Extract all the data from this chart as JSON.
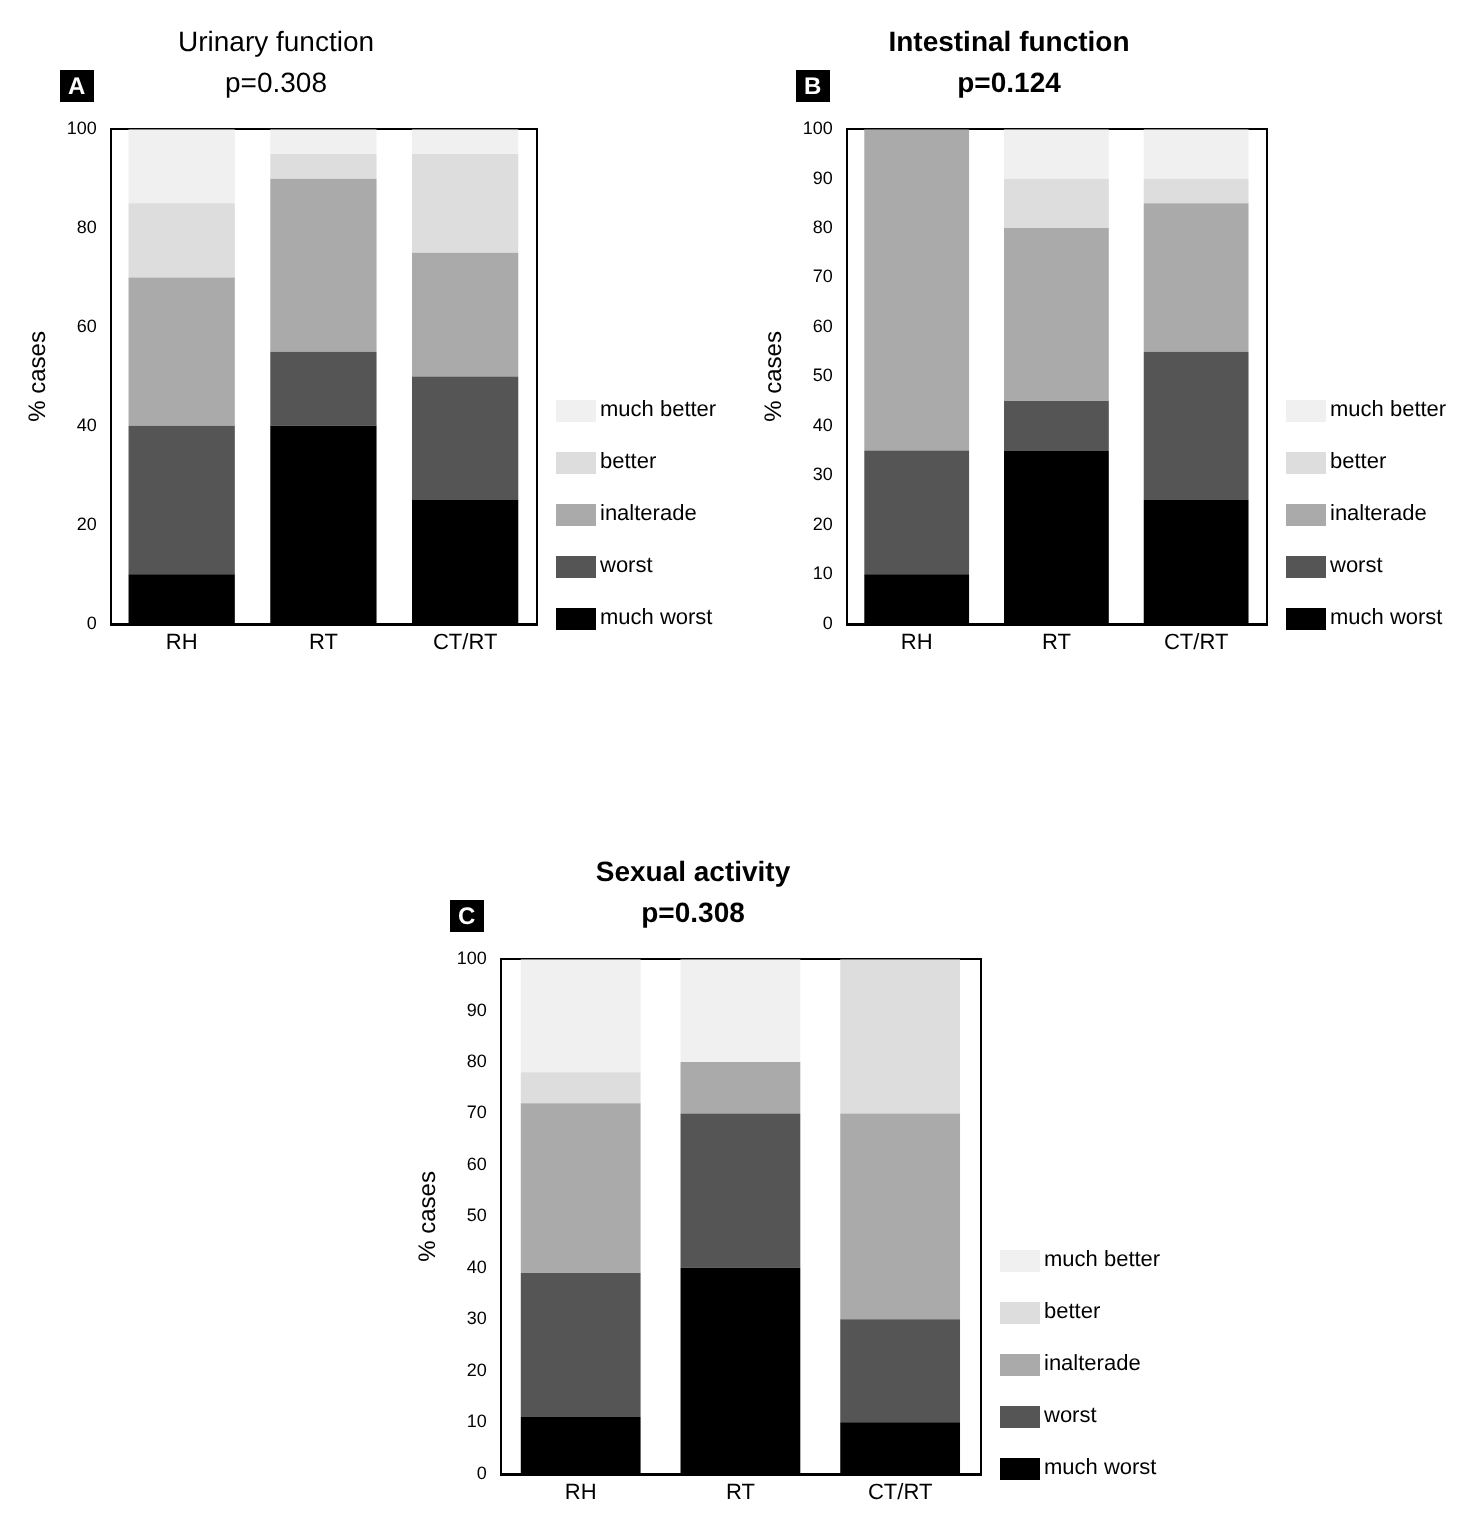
{
  "chart_data": [
    {
      "type": "bar",
      "title": "Urinary function",
      "subtitle": "p=0.308",
      "annotations": [
        "A"
      ],
      "ylabel": "% cases",
      "categories": [
        "RH",
        "RT",
        "CT/RT"
      ],
      "stacked": true,
      "legend": "right",
      "grid": false,
      "ylim": [
        0,
        100
      ],
      "yticks": [
        0,
        20,
        40,
        60,
        80,
        100
      ],
      "series": [
        {
          "name": "much worst",
          "color": "#000000",
          "values": [
            10,
            40,
            25
          ]
        },
        {
          "name": "worst",
          "color": "#555555",
          "values": [
            30,
            15,
            25
          ]
        },
        {
          "name": "inalterade",
          "color": "#aaaaaa",
          "values": [
            30,
            35,
            25
          ]
        },
        {
          "name": "better",
          "color": "#dddddd",
          "values": [
            15,
            5,
            20
          ]
        },
        {
          "name": "much better",
          "color": "#f0f0f0",
          "values": [
            15,
            5,
            5
          ]
        }
      ]
    },
    {
      "type": "bar",
      "title": "Intestinal function",
      "subtitle": "p=0.124",
      "annotations": [
        "B"
      ],
      "ylabel": "% cases",
      "categories": [
        "RH",
        "RT",
        "CT/RT"
      ],
      "stacked": true,
      "legend": "right",
      "grid": false,
      "ylim": [
        0,
        100
      ],
      "yticks": [
        0,
        10,
        20,
        30,
        40,
        50,
        60,
        70,
        80,
        90,
        100
      ],
      "series": [
        {
          "name": "much worst",
          "color": "#000000",
          "values": [
            10,
            35,
            25
          ]
        },
        {
          "name": "worst",
          "color": "#555555",
          "values": [
            25,
            10,
            30
          ]
        },
        {
          "name": "inalterade",
          "color": "#aaaaaa",
          "values": [
            65,
            35,
            30
          ]
        },
        {
          "name": "better",
          "color": "#dddddd",
          "values": [
            0,
            10,
            5
          ]
        },
        {
          "name": "much better",
          "color": "#f0f0f0",
          "values": [
            0,
            10,
            10
          ]
        }
      ]
    },
    {
      "type": "bar",
      "title": "Sexual activity",
      "subtitle": "p=0.308",
      "annotations": [
        "C"
      ],
      "ylabel": "% cases",
      "categories": [
        "RH",
        "RT",
        "CT/RT"
      ],
      "stacked": true,
      "legend": "right",
      "grid": false,
      "ylim": [
        0,
        100
      ],
      "yticks": [
        0,
        10,
        20,
        30,
        40,
        50,
        60,
        70,
        80,
        90,
        100
      ],
      "series": [
        {
          "name": "much worst",
          "color": "#000000",
          "values": [
            11,
            40,
            10
          ]
        },
        {
          "name": "worst",
          "color": "#555555",
          "values": [
            28,
            30,
            20
          ]
        },
        {
          "name": "inalterade",
          "color": "#aaaaaa",
          "values": [
            33,
            10,
            40
          ]
        },
        {
          "name": "better",
          "color": "#dddddd",
          "values": [
            6,
            0,
            30
          ]
        },
        {
          "name": "much better",
          "color": "#f0f0f0",
          "values": [
            22,
            20,
            0
          ]
        }
      ]
    }
  ]
}
